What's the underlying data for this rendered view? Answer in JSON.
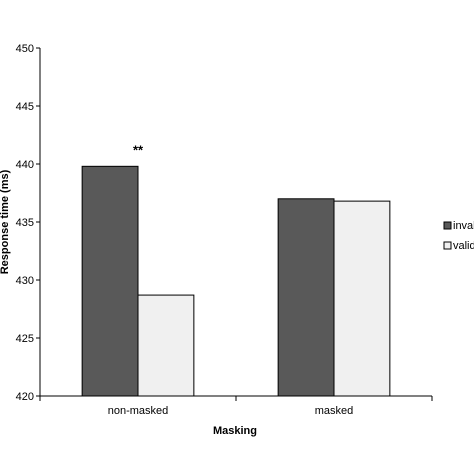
{
  "chart_data": {
    "type": "bar",
    "title": "",
    "xlabel": "Masking",
    "ylabel": "Response time (ms)",
    "categories": [
      "non-masked",
      "masked"
    ],
    "series": [
      {
        "name": "invalid",
        "values": [
          439.8,
          437.0
        ],
        "color": "#595959"
      },
      {
        "name": "valid",
        "values": [
          428.7,
          436.8
        ],
        "color": "#f0f0f0"
      }
    ],
    "ylim": [
      420,
      450
    ],
    "yticks": [
      420,
      425,
      430,
      435,
      440,
      445,
      450
    ],
    "grid": false,
    "legend_position": "right",
    "annotations": [
      {
        "text": "**",
        "category": "non-masked"
      }
    ]
  }
}
